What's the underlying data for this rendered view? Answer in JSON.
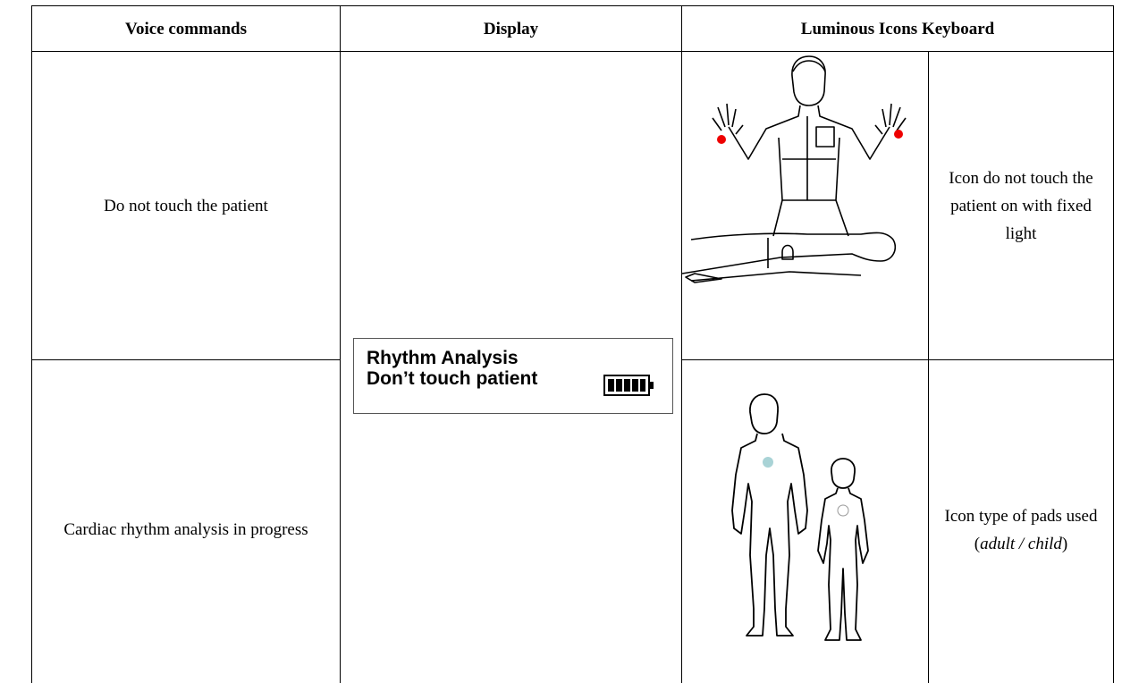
{
  "table": {
    "header": [
      "Voice commands",
      "Display",
      "Luminous Icons Keyboard"
    ],
    "rows": [
      {
        "voice": "Do not touch the patient",
        "icon_text": "Icon do not touch the patient on with fixed light"
      },
      {
        "voice": "Cardiac rhythm analysis in progress",
        "icon_text": {
          "prefix": "Icon type of pads used (",
          "italic": "adult / child",
          "suffix": ")"
        }
      }
    ],
    "display": {
      "line1": "Rhythm Analysis",
      "line2": "Don’t touch patient"
    }
  }
}
